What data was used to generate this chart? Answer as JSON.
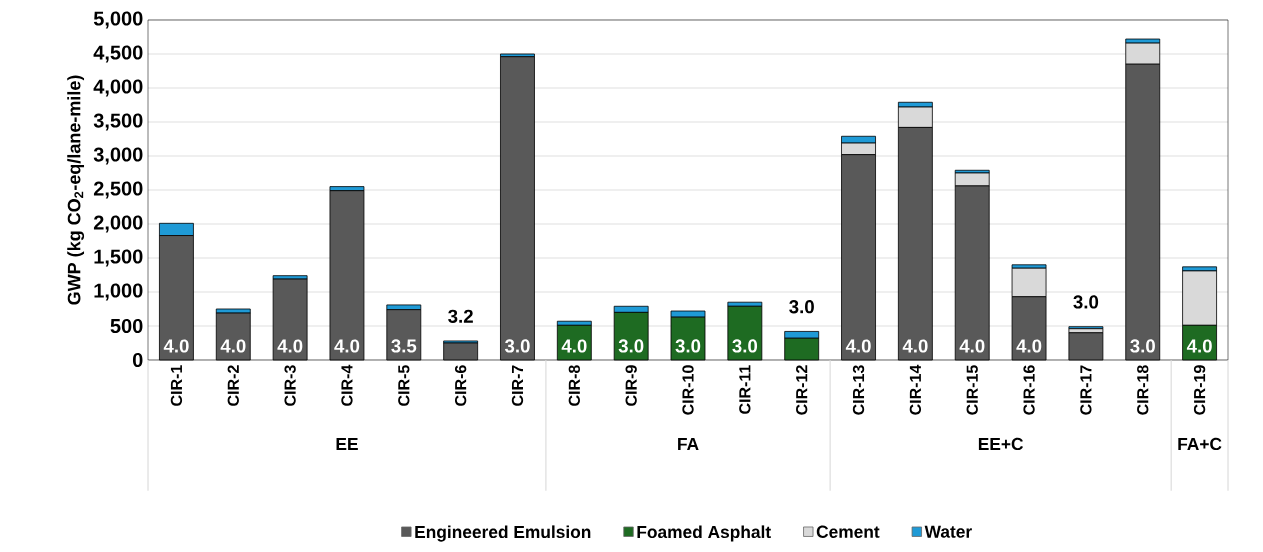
{
  "chart_data": {
    "type": "bar",
    "stacked": true,
    "ylabel": "GWP (kg CO$_{2}$-eq/lane-mile)",
    "categories": [
      "CIR-1",
      "CIR-2",
      "CIR-3",
      "CIR-4",
      "CIR-5",
      "CIR-6",
      "CIR-7",
      "CIR-8",
      "CIR-9",
      "CIR-10",
      "CIR-11",
      "CIR-12",
      "CIR-13",
      "CIR-14",
      "CIR-15",
      "CIR-16",
      "CIR-17",
      "CIR-18",
      "CIR-19"
    ],
    "series": [
      {
        "name": "Engineered Emulsion",
        "color": "#595959",
        "values": [
          1830,
          690,
          1190,
          2490,
          740,
          250,
          4460,
          null,
          null,
          null,
          null,
          null,
          3020,
          3420,
          2560,
          930,
          400,
          4350,
          null
        ]
      },
      {
        "name": "Foamed Asphalt",
        "color": "#1e6b22",
        "values": [
          null,
          null,
          null,
          null,
          null,
          null,
          null,
          510,
          700,
          630,
          790,
          320,
          null,
          null,
          null,
          null,
          null,
          null,
          510
        ]
      },
      {
        "name": "Cement",
        "color": "#d9d9d9",
        "values": [
          null,
          null,
          null,
          null,
          null,
          null,
          null,
          null,
          null,
          null,
          null,
          null,
          170,
          300,
          190,
          420,
          60,
          310,
          800
        ]
      },
      {
        "name": "Water",
        "color": "#1f9ad6",
        "values": [
          180,
          60,
          50,
          60,
          70,
          30,
          40,
          60,
          90,
          90,
          60,
          100,
          100,
          70,
          40,
          50,
          30,
          60,
          60
        ]
      }
    ],
    "ylim": [
      0,
      5000
    ],
    "yticks": [
      0,
      500,
      {
        "value": 1000,
        "label": "1,000"
      },
      {
        "value": 1500,
        "label": "1,500"
      },
      {
        "value": 2000,
        "label": "2,000"
      },
      {
        "value": 2500,
        "label": "2,500"
      },
      {
        "value": 3000,
        "label": "3,000"
      },
      {
        "value": 3500,
        "label": "3,500"
      },
      {
        "value": 4000,
        "label": "4,000"
      },
      {
        "value": 4500,
        "label": "4,500"
      },
      {
        "value": 5000,
        "label": "5,000"
      }
    ],
    "grid": "y",
    "legend": "bottom",
    "annotations": [
      "4.0",
      "4.0",
      "4.0",
      "4.0",
      "3.5",
      "3.2",
      "3.0",
      "4.0",
      "3.0",
      "3.0",
      "3.0",
      "3.0",
      "4.0",
      "4.0",
      "4.0",
      "4.0",
      "3.0",
      "3.0",
      "4.0",
      "EE",
      "FA",
      "EE+C",
      "FA+C"
    ]
  }
}
